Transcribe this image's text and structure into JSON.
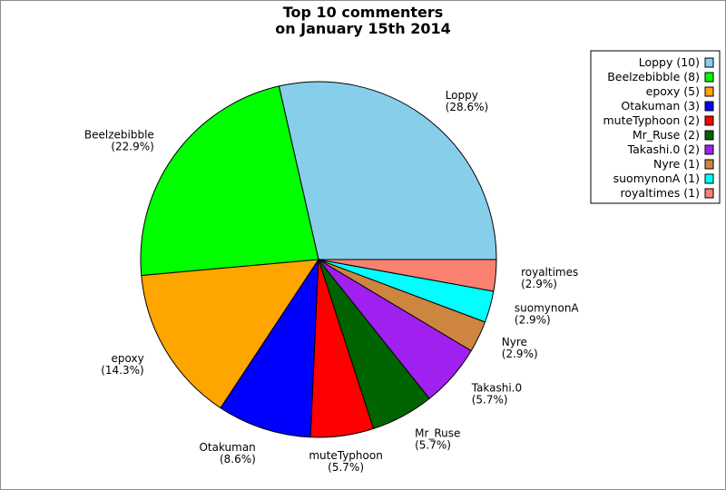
{
  "chart_data": {
    "type": "pie",
    "title_lines": [
      "Top 10 commenters",
      "on January 15th 2014"
    ],
    "legend_position": "top-right",
    "slices": [
      {
        "name": "Loppy",
        "value": 10,
        "percent_label": "(28.6%)",
        "legend_label": "Loppy (10)",
        "color": "#87ceeb"
      },
      {
        "name": "Beelzebibble",
        "value": 8,
        "percent_label": "(22.9%)",
        "legend_label": "Beelzebibble (8)",
        "color": "#00ff00"
      },
      {
        "name": "epoxy",
        "value": 5,
        "percent_label": "(14.3%)",
        "legend_label": "epoxy (5)",
        "color": "#ffa500"
      },
      {
        "name": "Otakuman",
        "value": 3,
        "percent_label": "(8.6%)",
        "legend_label": "Otakuman (3)",
        "color": "#0000ff"
      },
      {
        "name": "muteTyphoon",
        "value": 2,
        "percent_label": "(5.7%)",
        "legend_label": "muteTyphoon (2)",
        "color": "#ff0000"
      },
      {
        "name": "Mr_Ruse",
        "value": 2,
        "percent_label": "(5.7%)",
        "legend_label": "Mr_Ruse (2)",
        "color": "#006400"
      },
      {
        "name": "Takashi.0",
        "value": 2,
        "percent_label": "(5.7%)",
        "legend_label": "Takashi.0 (2)",
        "color": "#a020f0"
      },
      {
        "name": "Nyre",
        "value": 1,
        "percent_label": "(2.9%)",
        "legend_label": "Nyre (1)",
        "color": "#cd853f"
      },
      {
        "name": "suomynonA",
        "value": 1,
        "percent_label": "(2.9%)",
        "legend_label": "suomynonA (1)",
        "color": "#00ffff"
      },
      {
        "name": "royaltimes",
        "value": 1,
        "percent_label": "(2.9%)",
        "legend_label": "royaltimes (1)",
        "color": "#fa8072"
      }
    ]
  }
}
